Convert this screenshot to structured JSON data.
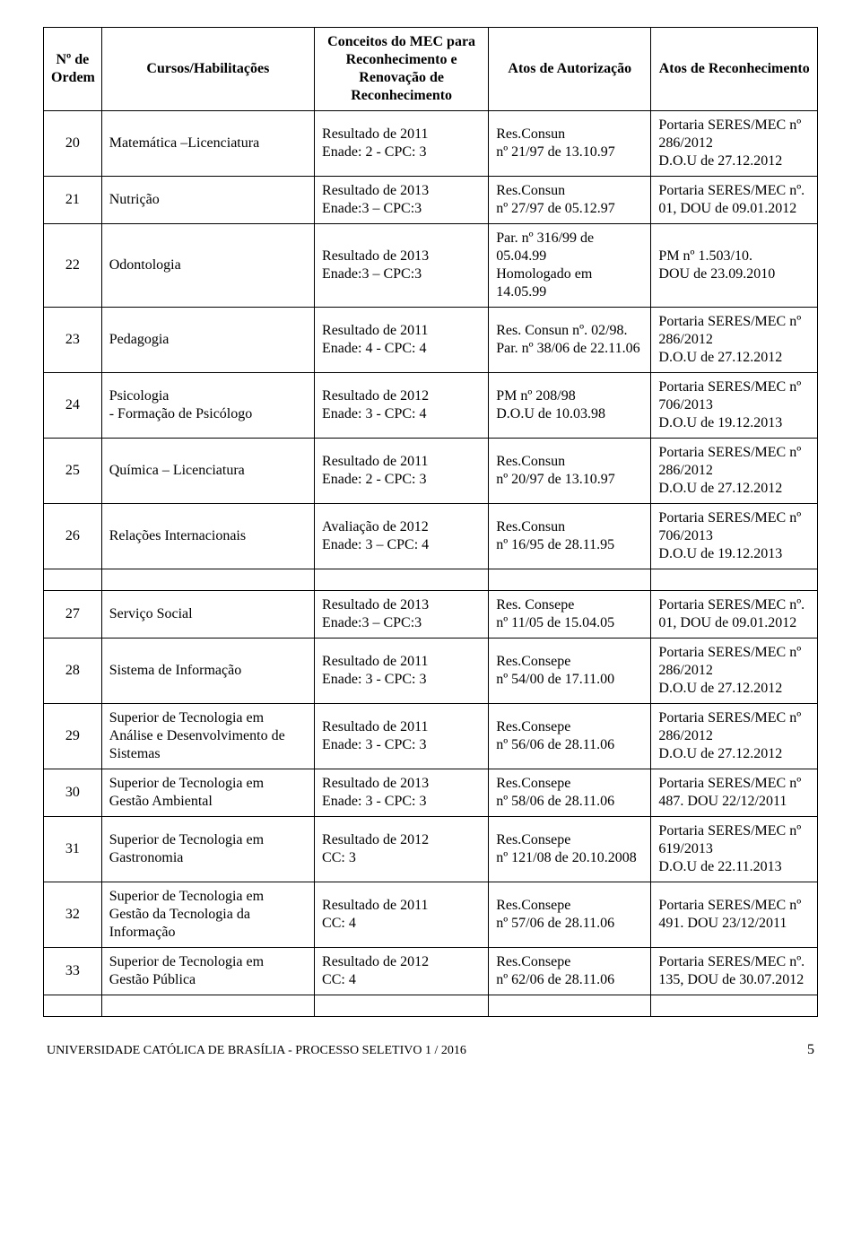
{
  "header": {
    "ordem": "Nº de Ordem",
    "cursos": "Cursos/Habilitações",
    "conceitos": "Conceitos do MEC para Reconhecimento e Renovação de Reconhecimento",
    "autorizacao": "Atos de Autorização",
    "reconhecimento": "Atos de Reconhecimento"
  },
  "rows1": [
    {
      "n": "20",
      "curso": "Matemática –Licenciatura",
      "conc": "Resultado de 2011\nEnade: 2 - CPC: 3",
      "aut": "Res.Consun\nnº  21/97 de 13.10.97",
      "rec": "Portaria SERES/MEC nº 286/2012\nD.O.U de 27.12.2012"
    },
    {
      "n": "21",
      "curso": "Nutrição",
      "conc": "Resultado de 2013\nEnade:3 – CPC:3",
      "aut": "Res.Consun\nnº 27/97 de 05.12.97",
      "rec": "Portaria SERES/MEC nº. 01, DOU de 09.01.2012"
    },
    {
      "n": "22",
      "curso": "Odontologia",
      "conc": "Resultado de 2013\nEnade:3 – CPC:3",
      "aut": "Par. nº 316/99 de 05.04.99\nHomologado em 14.05.99",
      "rec": "PM nº 1.503/10.\nDOU de 23.09.2010"
    },
    {
      "n": "23",
      "curso": "Pedagogia",
      "conc": "Resultado de 2011\nEnade: 4 - CPC: 4",
      "aut": "Res. Consun nº. 02/98. Par. nº 38/06 de 22.11.06",
      "rec": "Portaria SERES/MEC nº 286/2012\nD.O.U de 27.12.2012"
    },
    {
      "n": "24",
      "curso": "Psicologia\n - Formação de Psicólogo",
      "conc": "Resultado de 2012\nEnade: 3 - CPC: 4",
      "aut": "PM nº 208/98\nD.O.U de 10.03.98",
      "rec": "Portaria SERES/MEC nº 706/2013\nD.O.U de 19.12.2013"
    },
    {
      "n": "25",
      "curso": "Química – Licenciatura",
      "conc": "Resultado de 2011\nEnade: 2 - CPC: 3",
      "aut": "Res.Consun\nnº 20/97 de 13.10.97",
      "rec": "Portaria SERES/MEC nº 286/2012\nD.O.U de 27.12.2012"
    },
    {
      "n": "26",
      "curso": "Relações Internacionais",
      "conc": "Avaliação de 2012\nEnade: 3 – CPC: 4",
      "aut": "Res.Consun\nnº 16/95 de 28.11.95",
      "rec": "Portaria SERES/MEC nº 706/2013\nD.O.U de 19.12.2013"
    }
  ],
  "rows2": [
    {
      "n": "27",
      "curso": "Serviço Social",
      "conc": "Resultado de 2013\nEnade:3 – CPC:3",
      "aut": "Res. Consepe\nnº 11/05 de 15.04.05",
      "rec": "Portaria SERES/MEC nº. 01, DOU de 09.01.2012"
    },
    {
      "n": "28",
      "curso": "Sistema de Informação",
      "conc": "Resultado de 2011\nEnade: 3 - CPC: 3",
      "aut": "Res.Consepe\nnº 54/00 de 17.11.00",
      "rec": "Portaria SERES/MEC nº 286/2012\nD.O.U de 27.12.2012"
    },
    {
      "n": "29",
      "curso": "Superior de Tecnologia em Análise e Desenvolvimento de Sistemas",
      "conc": "Resultado de 2011\nEnade: 3 - CPC: 3",
      "aut": "Res.Consepe\nnº 56/06 de 28.11.06",
      "rec": "Portaria SERES/MEC nº 286/2012\nD.O.U de 27.12.2012"
    },
    {
      "n": "30",
      "curso": "Superior de Tecnologia em Gestão Ambiental",
      "conc": "Resultado de 2013\nEnade: 3 - CPC: 3",
      "aut": "Res.Consepe\nnº 58/06 de 28.11.06",
      "rec": "Portaria SERES/MEC nº 487. DOU 22/12/2011"
    },
    {
      "n": "31",
      "curso": "Superior de Tecnologia em Gastronomia",
      "conc": "Resultado de 2012\nCC: 3",
      "aut": "Res.Consepe\nnº 121/08 de 20.10.2008",
      "rec": "Portaria SERES/MEC nº 619/2013\nD.O.U de 22.11.2013"
    },
    {
      "n": "32",
      "curso": "Superior de Tecnologia em Gestão da Tecnologia da Informação",
      "conc": "Resultado de 2011\nCC: 4",
      "aut": "Res.Consepe\nnº 57/06 de 28.11.06",
      "rec": "Portaria SERES/MEC nº 491. DOU 23/12/2011"
    },
    {
      "n": "33",
      "curso": "Superior de Tecnologia em Gestão Pública",
      "conc": "Resultado de 2012\nCC: 4",
      "aut": "Res.Consepe\nnº 62/06 de 28.11.06",
      "rec": "Portaria SERES/MEC nº. 135, DOU de 30.07.2012"
    }
  ],
  "footer": {
    "text": "UNIVERSIDADE CATÓLICA DE BRASÍLIA - PROCESSO SELETIVO 1 / 2016",
    "page": "5"
  }
}
